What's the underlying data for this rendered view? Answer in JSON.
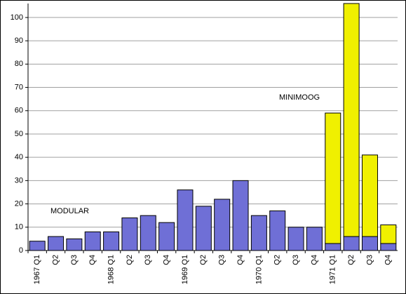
{
  "chart_data": {
    "type": "stacked_bar",
    "categories": [
      "1967 Q1",
      "Q2",
      "Q3",
      "Q4",
      "1968 Q1",
      "Q2",
      "Q3",
      "Q4",
      "1969 Q1",
      "Q2",
      "Q3",
      "Q4",
      "1970 Q1",
      "Q2",
      "Q3",
      "Q4",
      "1971 Q1",
      "Q2",
      "Q3",
      "Q4"
    ],
    "series": [
      {
        "name": "MODULAR",
        "color": "#6f6fd6",
        "values": [
          4,
          6,
          5,
          8,
          8,
          14,
          15,
          12,
          26,
          19,
          22,
          30,
          15,
          17,
          10,
          10,
          3,
          6,
          6,
          3
        ]
      },
      {
        "name": "MINIMOOG",
        "color": "#f0f000",
        "values": [
          null,
          null,
          null,
          null,
          null,
          null,
          null,
          null,
          null,
          null,
          null,
          null,
          null,
          null,
          null,
          null,
          56,
          100,
          35,
          8
        ]
      }
    ],
    "ylim": [
      0,
      106
    ],
    "yticks": [
      0,
      10,
      20,
      30,
      40,
      50,
      60,
      70,
      80,
      90,
      100
    ],
    "grid": true
  }
}
